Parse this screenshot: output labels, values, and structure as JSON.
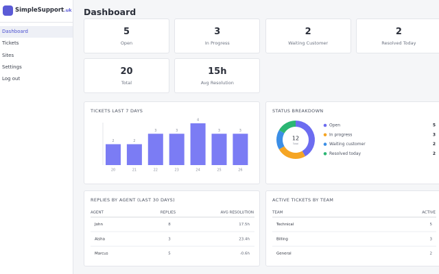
{
  "sidebar": {
    "brand": "SimpleSupport",
    "brand_suffix": ".uk",
    "nav": [
      "Dashboard",
      "Tickets",
      "Sites",
      "Settings",
      "Log out"
    ],
    "active": "Dashboard"
  },
  "page_title": "Dashboard",
  "stats": [
    {
      "value": 5,
      "label": "Open"
    },
    {
      "value": 3,
      "label": "In Progress"
    },
    {
      "value": 2,
      "label": "Waiting Customer"
    },
    {
      "value": 2,
      "label": "Resolved Today"
    },
    {
      "value": 20,
      "label": "Total"
    },
    {
      "value": "15h",
      "label": "Avg Resolution"
    }
  ],
  "tickets_chart": {
    "type": "bar",
    "title": "TICKETS LAST 7 DAYS",
    "categories": [
      "20",
      "21",
      "22",
      "23",
      "24",
      "25",
      "26"
    ],
    "values": [
      2,
      2,
      3,
      3,
      4,
      3,
      3
    ],
    "color": "#7b7cf4",
    "ylim": [
      0,
      4
    ]
  },
  "status_chart": {
    "type": "donut",
    "title": "STATUS BREAKDOWN",
    "categories": [
      "Open",
      "In progress",
      "Waiting customer",
      "Resolved today"
    ],
    "values": [
      5,
      3,
      2,
      2
    ],
    "colors": [
      "#6c6cf0",
      "#f5a524",
      "#3b8ee6",
      "#2bb673"
    ],
    "total": 12,
    "total_label": "Total"
  },
  "replies_table": {
    "title": "REPLIES BY AGENT (LAST 30 DAYS)",
    "columns": [
      "AGENT",
      "REPLIES",
      "AVG RESOLUTION"
    ],
    "rows": [
      [
        "John",
        "8",
        "17.5h"
      ],
      [
        "Aisha",
        "3",
        "23.4h"
      ],
      [
        "Marcus",
        "5",
        "-0.6h"
      ]
    ]
  },
  "active_table": {
    "title": "ACTIVE TICKETS BY TEAM",
    "columns": [
      "TEAM",
      "ACTIVE"
    ],
    "rows": [
      [
        "Technical",
        "5"
      ],
      [
        "Billing",
        "3"
      ],
      [
        "General",
        "2"
      ]
    ]
  }
}
